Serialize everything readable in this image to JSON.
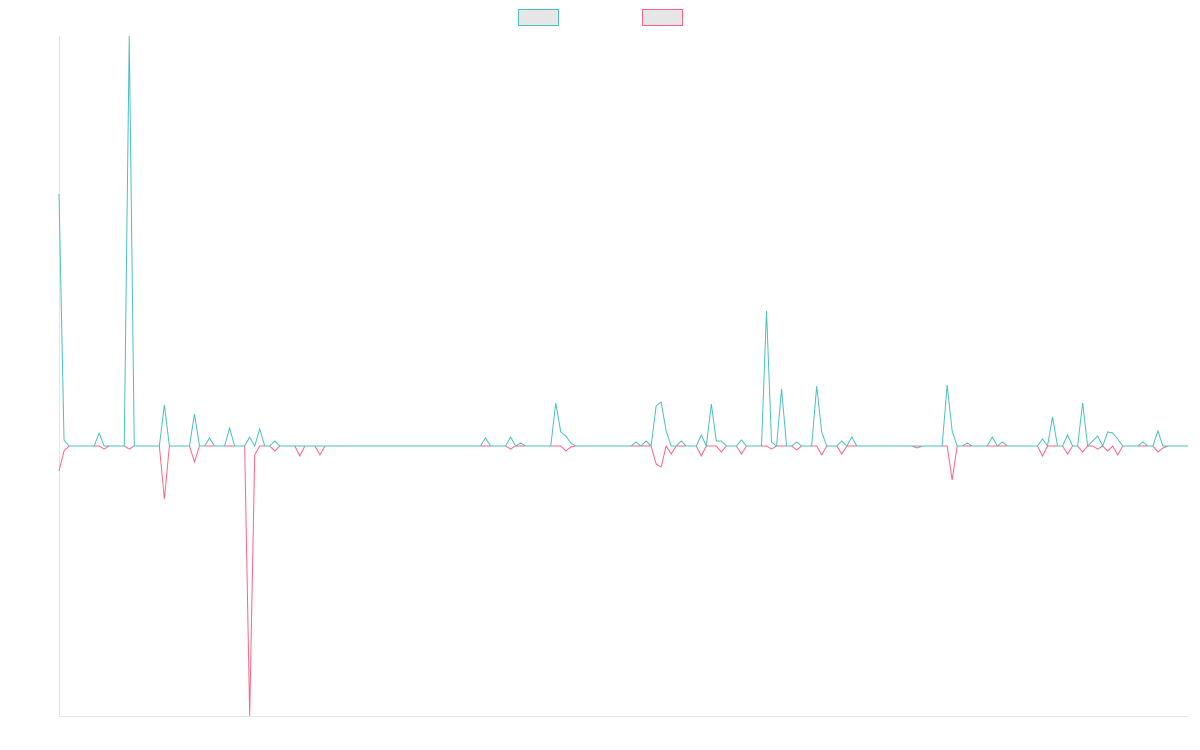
{
  "chart_data": {
    "type": "line",
    "legend": "top",
    "ylim": [
      -270,
      410
    ],
    "series": [
      {
        "color": "#4bc0c0",
        "values": [
          252,
          6,
          0,
          0,
          0,
          0,
          0,
          0,
          13,
          0,
          0,
          0,
          0,
          0,
          410,
          0,
          0,
          0,
          0,
          0,
          0,
          41,
          0,
          0,
          0,
          0,
          0,
          32,
          0,
          0,
          8,
          0,
          0,
          0,
          18,
          0,
          0,
          0,
          9,
          0,
          17,
          0,
          0,
          5,
          0,
          0,
          0,
          0,
          0,
          0,
          0,
          0,
          0,
          0,
          0,
          0,
          0,
          0,
          0,
          0,
          0,
          0,
          0,
          0,
          0,
          0,
          0,
          0,
          0,
          0,
          0,
          0,
          0,
          0,
          0,
          0,
          0,
          0,
          0,
          0,
          0,
          0,
          0,
          0,
          0,
          8,
          0,
          0,
          0,
          0,
          9,
          0,
          3,
          0,
          0,
          0,
          0,
          0,
          0,
          43,
          14,
          10,
          3,
          0,
          0,
          0,
          0,
          0,
          0,
          0,
          0,
          0,
          0,
          0,
          0,
          4,
          0,
          5,
          0,
          40,
          44,
          15,
          0,
          0,
          5,
          0,
          0,
          0,
          11,
          0,
          42,
          5,
          5,
          0,
          0,
          0,
          6,
          0,
          0,
          0,
          0,
          135,
          4,
          0,
          57,
          0,
          0,
          4,
          0,
          0,
          0,
          60,
          14,
          0,
          0,
          0,
          5,
          0,
          9,
          0,
          0,
          0,
          0,
          0,
          0,
          0,
          0,
          0,
          0,
          0,
          0,
          0,
          0,
          0,
          0,
          0,
          0,
          61,
          15,
          0,
          0,
          3,
          0,
          0,
          0,
          0,
          9,
          0,
          4,
          0,
          0,
          0,
          0,
          0,
          0,
          0,
          7,
          0,
          29,
          0,
          0,
          11,
          0,
          0,
          43,
          0,
          5,
          10,
          0,
          14,
          13,
          7,
          0,
          0,
          0,
          0,
          4,
          0,
          0,
          15,
          0,
          0,
          0,
          0,
          0,
          0
        ]
      },
      {
        "color": "#ff6384",
        "values": [
          -25,
          -5,
          0,
          0,
          0,
          0,
          0,
          0,
          0,
          -3,
          0,
          0,
          0,
          0,
          -3,
          0,
          0,
          0,
          0,
          0,
          0,
          -53,
          0,
          0,
          0,
          0,
          0,
          -16,
          0,
          0,
          0,
          0,
          0,
          0,
          0,
          0,
          0,
          0,
          -270,
          -9,
          0,
          0,
          0,
          -5,
          0,
          0,
          0,
          0,
          -10,
          0,
          0,
          0,
          -9,
          0,
          0,
          0,
          0,
          0,
          0,
          0,
          0,
          0,
          0,
          0,
          0,
          0,
          0,
          0,
          0,
          0,
          0,
          0,
          0,
          0,
          0,
          0,
          0,
          0,
          0,
          0,
          0,
          0,
          0,
          0,
          0,
          0,
          0,
          0,
          0,
          0,
          -3,
          0,
          0,
          0,
          0,
          0,
          0,
          0,
          0,
          0,
          0,
          -5,
          -1,
          0,
          0,
          0,
          0,
          0,
          0,
          0,
          0,
          0,
          0,
          0,
          0,
          0,
          0,
          0,
          0,
          -18,
          -21,
          0,
          -8,
          0,
          0,
          0,
          0,
          0,
          -10,
          0,
          0,
          0,
          -6,
          0,
          0,
          0,
          -8,
          0,
          0,
          0,
          0,
          0,
          -3,
          0,
          0,
          0,
          0,
          -4,
          0,
          0,
          0,
          0,
          -9,
          0,
          0,
          0,
          -8,
          0,
          0,
          0,
          0,
          0,
          0,
          0,
          0,
          0,
          0,
          0,
          0,
          0,
          0,
          -2,
          0,
          0,
          0,
          0,
          0,
          0,
          -34,
          0,
          0,
          0,
          0,
          0,
          0,
          0,
          0,
          0,
          0,
          0,
          0,
          0,
          0,
          0,
          0,
          0,
          -10,
          0,
          0,
          0,
          0,
          -8,
          0,
          0,
          -6,
          0,
          0,
          -3,
          0,
          -5,
          0,
          -9,
          0,
          0,
          0,
          0,
          0,
          0,
          0,
          -6,
          -2,
          0,
          0,
          0,
          0,
          0
        ]
      }
    ]
  }
}
